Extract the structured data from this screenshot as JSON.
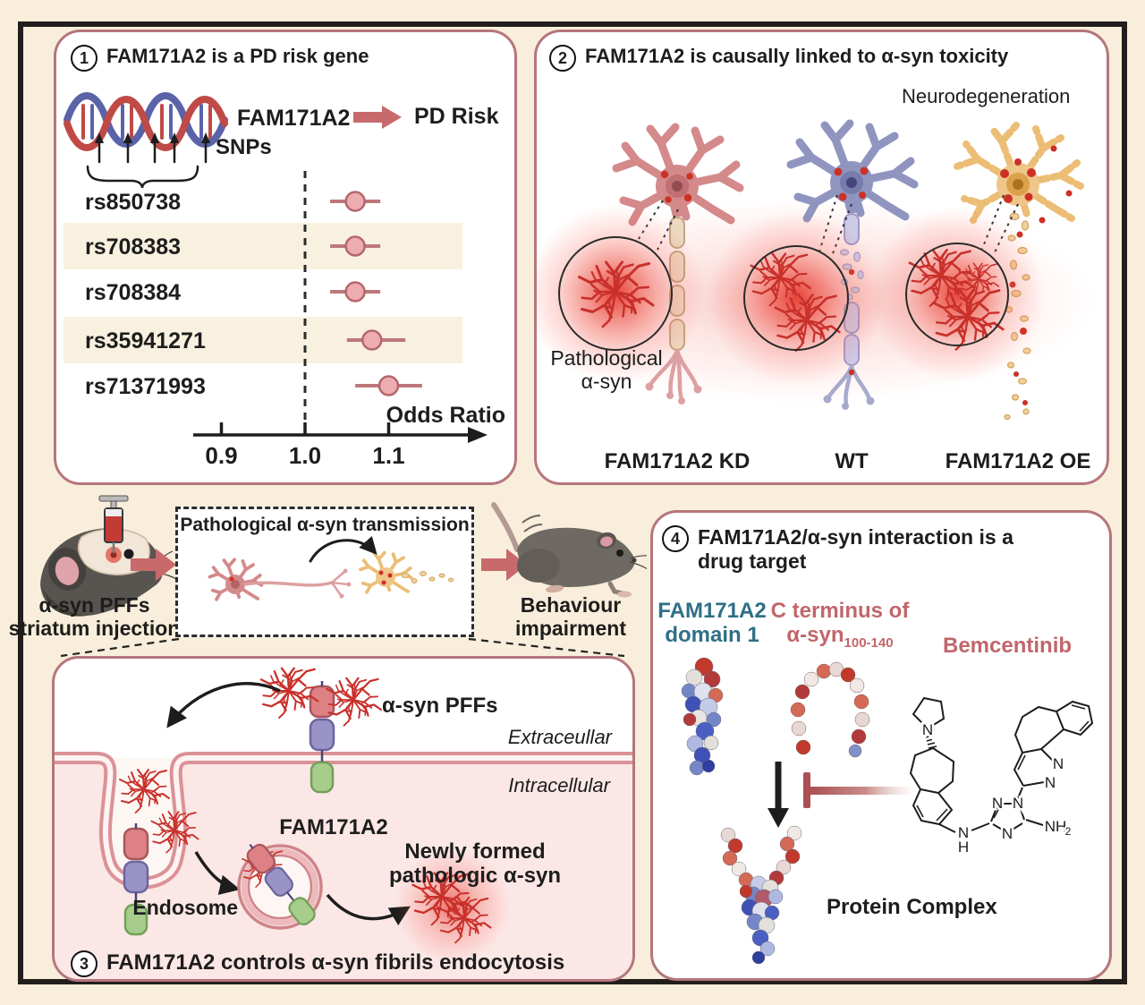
{
  "colors": {
    "background": "#f8eedb",
    "frame": "#211e1b",
    "panel_border": "#b4767c",
    "accent_red": "#c8696c",
    "fibril_red": "#c9302a",
    "teal_text": "#2e6f86",
    "rose_text": "#c1666b",
    "highlight_row": "#f9f1e0"
  },
  "panel1": {
    "number": "1",
    "title": "FAM171A2 is a PD risk gene",
    "gene_label": "FAM171A2",
    "risk_label": "PD Risk",
    "snps_label": "SNPs"
  },
  "chart_data": {
    "type": "forest",
    "xlabel": "Odds Ratio",
    "reference_line": 1.0,
    "xlim": [
      0.85,
      1.18
    ],
    "x_ticks": [
      {
        "v": 0.9,
        "label": "0.9"
      },
      {
        "v": 1.0,
        "label": "1.0"
      },
      {
        "v": 1.1,
        "label": "1.1"
      }
    ],
    "rows": [
      {
        "label": "rs850738",
        "or": 1.06,
        "ci_low": 1.03,
        "ci_high": 1.09,
        "highlight": false
      },
      {
        "label": "rs708383",
        "or": 1.06,
        "ci_low": 1.03,
        "ci_high": 1.09,
        "highlight": true
      },
      {
        "label": "rs708384",
        "or": 1.06,
        "ci_low": 1.03,
        "ci_high": 1.09,
        "highlight": false
      },
      {
        "label": "rs35941271",
        "or": 1.08,
        "ci_low": 1.05,
        "ci_high": 1.12,
        "highlight": true
      },
      {
        "label": "rs71371993",
        "or": 1.1,
        "ci_low": 1.06,
        "ci_high": 1.14,
        "highlight": false
      }
    ]
  },
  "panel2": {
    "number": "2",
    "title": "FAM171A2 is causally linked to α-syn toxicity",
    "neurodegeneration": "Neurodegeneration",
    "pathological_line1": "Pathological",
    "pathological_line2": "α-syn",
    "neuron_labels": [
      "FAM171A2 KD",
      "WT",
      "FAM171A2 OE"
    ]
  },
  "middle": {
    "left_line1": "α-syn PFFs",
    "left_line2": "striatum injection",
    "box_title": "Pathological α-syn transmission",
    "right_line1": "Behaviour",
    "right_line2": "impairment"
  },
  "panel3": {
    "number": "3",
    "title": "FAM171A2 controls α-syn fibrils endocytosis",
    "pffs": "α-syn PFFs",
    "extracellular": "Extraceullar",
    "intracellular": "Intracellular",
    "receptor": "FAM171A2",
    "newly_line1": "Newly formed",
    "newly_line2": "pathologic α-syn",
    "endosome": "Endosome"
  },
  "panel4": {
    "number": "4",
    "title_line1": "FAM171A2/α-syn interaction is a",
    "title_line2": "drug target",
    "domain_line1": "FAM171A2",
    "domain_line2": "domain 1",
    "cterm_line1": "C terminus of",
    "cterm_base": "α-syn",
    "cterm_sub": "100-140",
    "drug": "Bemcentinib",
    "complex": "Protein Complex",
    "atoms": {
      "n_pyr": "N",
      "n_link": "N",
      "h_link": "H",
      "n_t1": "N",
      "n_t2": "N",
      "n_t3": "N",
      "amine": "NH",
      "amine_sub": "2",
      "n_p1": "N",
      "n_p2": "N"
    }
  }
}
